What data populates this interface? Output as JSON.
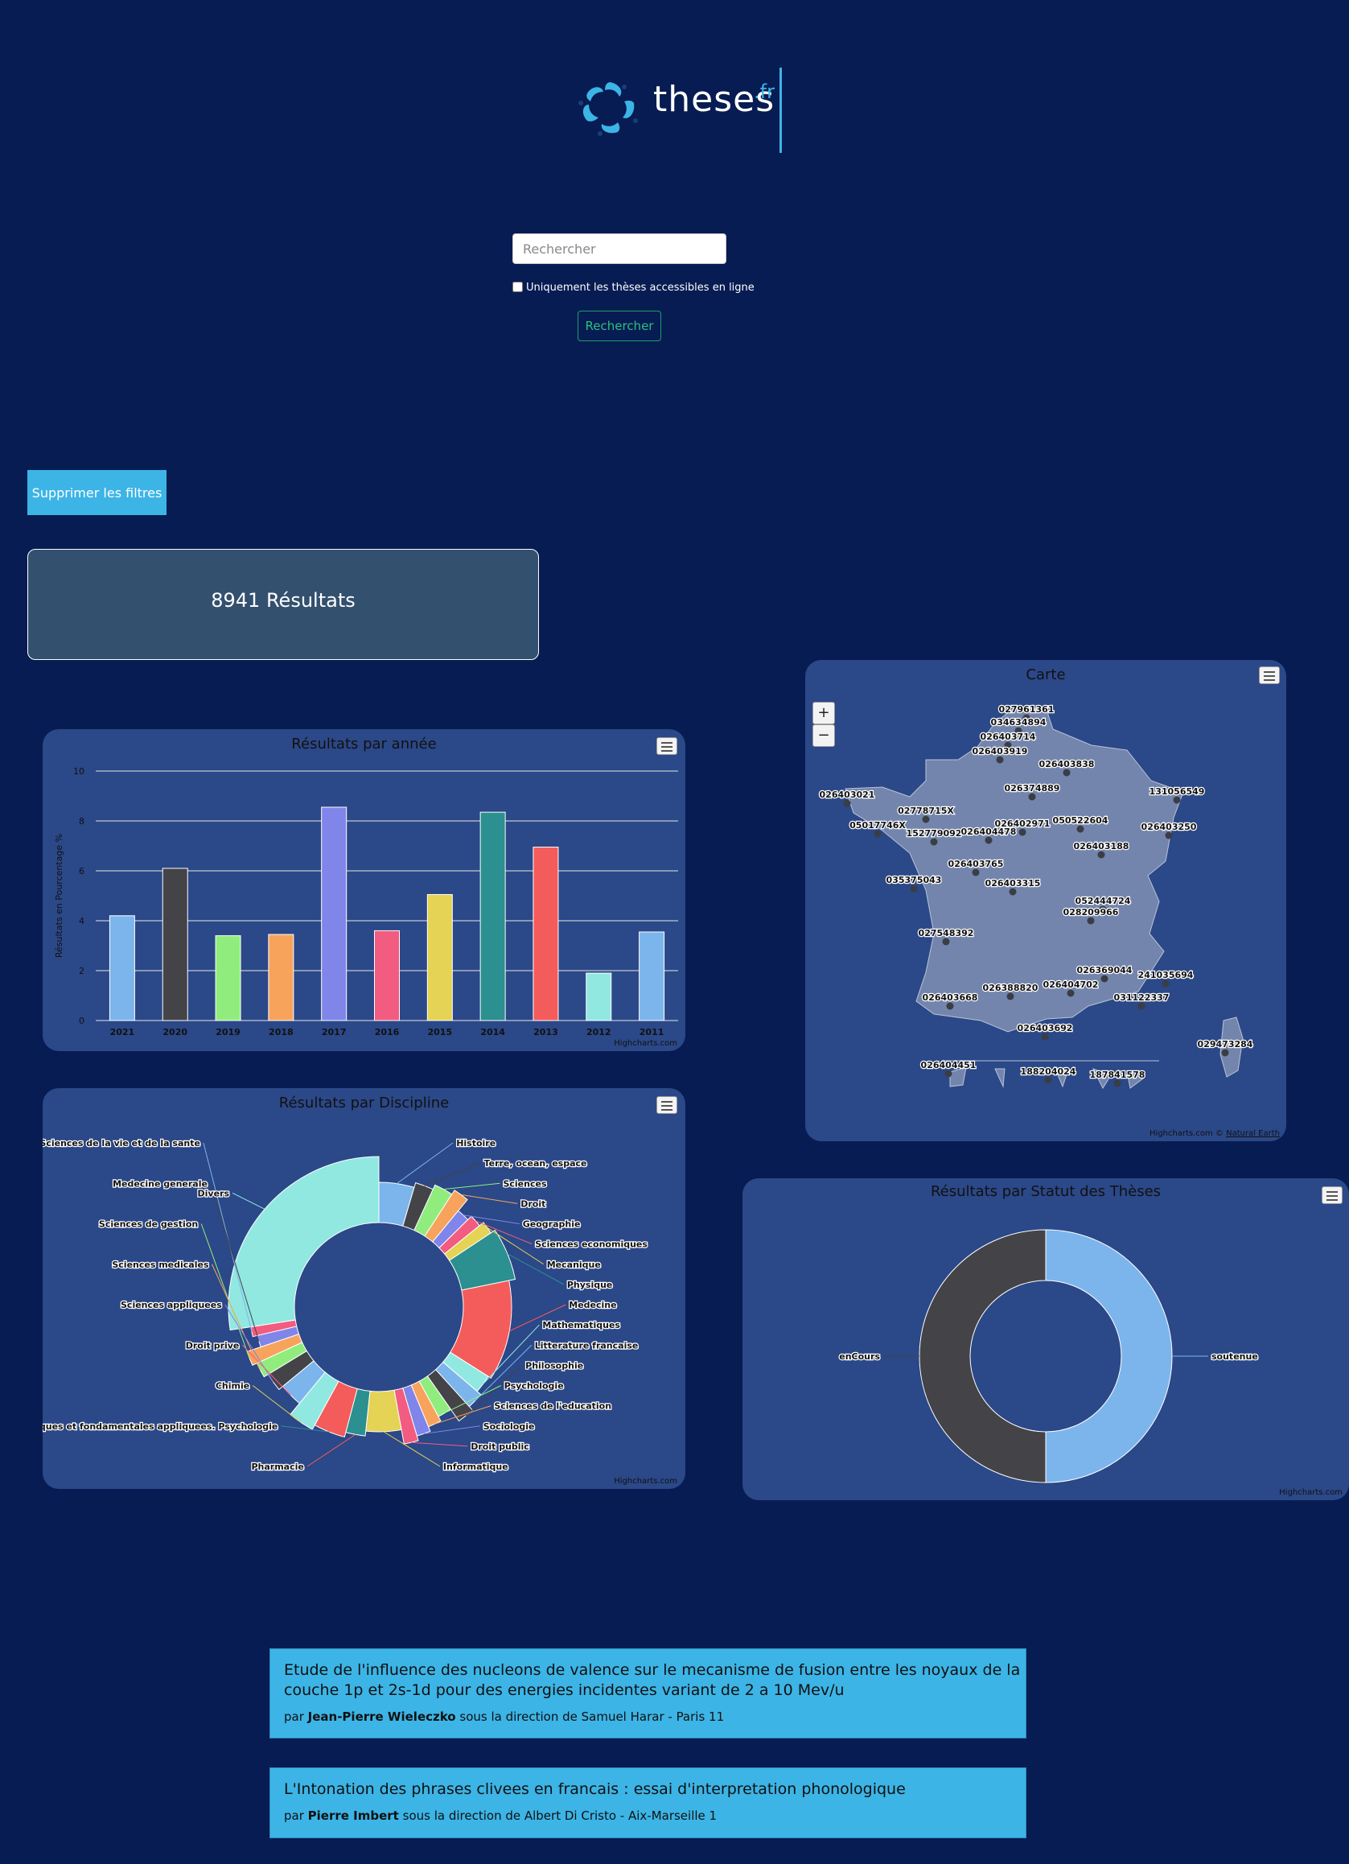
{
  "header": {
    "logo_text": "theses",
    "logo_suffix": ".fr"
  },
  "search": {
    "placeholder": "Rechercher",
    "value": "",
    "online_only_label": "Uniquement les thèses accessibles en ligne",
    "button_label": "Rechercher"
  },
  "filters": {
    "clear_label": "Supprimer les filtres"
  },
  "results": {
    "count_label": "8941 Résultats"
  },
  "colors": {
    "background": "#071c52",
    "panel": "#2b4888",
    "accent": "#3cb4e6",
    "results_box": "#34506f"
  },
  "year_chart": {
    "chart_data": {
      "type": "bar",
      "title": "Résultats par année",
      "ylabel": "Résultats en Pourcentage %",
      "categories": [
        "2021",
        "2020",
        "2019",
        "2018",
        "2017",
        "2016",
        "2015",
        "2014",
        "2013",
        "2012",
        "2011"
      ],
      "values": [
        4.2,
        6.1,
        3.4,
        3.45,
        8.55,
        3.6,
        5.05,
        8.35,
        6.95,
        1.9,
        3.55
      ],
      "colors": [
        "#7cb5ec",
        "#434348",
        "#90ed7d",
        "#f7a35c",
        "#8085e9",
        "#f15c80",
        "#e4d354",
        "#2b908f",
        "#f45b5b",
        "#91e8e1",
        "#7cb5ec"
      ],
      "ylim": [
        0,
        10
      ],
      "yticks": [
        0,
        2,
        4,
        6,
        8,
        10
      ],
      "grid": true,
      "credit": "Highcharts.com"
    }
  },
  "discipline_chart": {
    "chart_data": {
      "type": "pie",
      "title": "Résultats par Discipline",
      "slices": [
        {
          "name": "Histoire",
          "value": 3
        },
        {
          "name": "Terre, ocean, espace",
          "value": 1.5
        },
        {
          "name": "Sciences",
          "value": 1.5
        },
        {
          "name": "Droit",
          "value": 1.2
        },
        {
          "name": "Geographie",
          "value": 1.1
        },
        {
          "name": "Sciences economiques",
          "value": 1
        },
        {
          "name": "Mecanique",
          "value": 1
        },
        {
          "name": "Physique",
          "value": 4
        },
        {
          "name": "Medecine",
          "value": 8
        },
        {
          "name": "Mathematiques",
          "value": 1.5
        },
        {
          "name": "Litterature francaise",
          "value": 1.3
        },
        {
          "name": "Philosophie",
          "value": 1.3
        },
        {
          "name": "Psychologie",
          "value": 1.2
        },
        {
          "name": "Sciences de l'education",
          "value": 1.1
        },
        {
          "name": "Sociologie",
          "value": 1.1
        },
        {
          "name": "Droit public",
          "value": 1.1
        },
        {
          "name": "Informatique",
          "value": 3
        },
        {
          "name": "Pharmacie",
          "value": 1.6
        },
        {
          "name": "Sciences biologiques et fondamentales appliquees. Psychologie",
          "value": 2.5
        },
        {
          "name": "Chimie",
          "value": 2
        },
        {
          "name": "Droit prive",
          "value": 2
        },
        {
          "name": "Sciences appliquees",
          "value": 1.5
        },
        {
          "name": "Sciences medicales",
          "value": 1.2
        },
        {
          "name": "Sciences de gestion",
          "value": 1.1
        },
        {
          "name": "Medecine generale",
          "value": 1
        },
        {
          "name": "Sciences de la vie et de la sante",
          "value": 0.8
        },
        {
          "name": "Divers",
          "value": 18
        }
      ],
      "credit": "Highcharts.com"
    }
  },
  "status_chart": {
    "chart_data": {
      "type": "pie",
      "title": "Résultats par Statut des Thèses",
      "slices": [
        {
          "name": "soutenue",
          "value": 50,
          "color": "#7cb5ec"
        },
        {
          "name": "enCours",
          "value": 50,
          "color": "#434348"
        }
      ],
      "credit": "Highcharts.com"
    }
  },
  "map": {
    "title": "Carte",
    "zoom_in": "+",
    "zoom_out": "−",
    "credit": "Highcharts.com © ",
    "credit_link": "Natural Earth",
    "points": [
      "027961361",
      "034634894",
      "026403714",
      "026403919",
      "026403838",
      "026374889",
      "026403021",
      "02778715X",
      "050522604",
      "131056549",
      "05017746X",
      "026402971",
      "026403250",
      "152779092",
      "026404478",
      "026403188",
      "026403765",
      "035375043",
      "026403315",
      "052444724",
      "028209966",
      "027548392",
      "026369044",
      "241035694",
      "026388820",
      "026404702",
      "026403668",
      "031122337",
      "026403692",
      "029473284",
      "026404451",
      "188204024",
      "187841578"
    ]
  },
  "result_list": [
    {
      "title": "Etude de l'influence des nucleons de valence sur le mecanisme de fusion entre les noyaux de la couche 1p et 2s-1d pour des energies incidentes variant de 2 a 10 Mev/u",
      "by": "par ",
      "author": "Jean-Pierre Wieleczko",
      "direction": " sous la direction de Samuel Harar - Paris 11"
    },
    {
      "title": "L'Intonation des phrases clivees en francais : essai d'interpretation phonologique",
      "by": "par ",
      "author": "Pierre Imbert",
      "direction": " sous la direction de Albert Di Cristo - Aix-Marseille 1"
    }
  ]
}
